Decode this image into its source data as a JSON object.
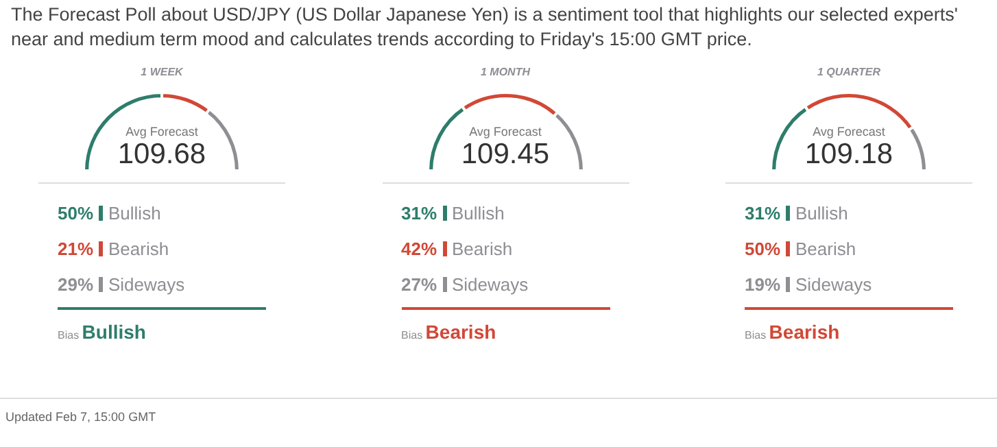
{
  "chart_data": [
    {
      "type": "donut",
      "title": "1 WEEK",
      "categories": [
        "Bullish",
        "Bearish",
        "Sideways"
      ],
      "values": [
        50,
        21,
        29
      ],
      "value_labels": [
        "50%",
        "21%",
        "29%"
      ],
      "colors": [
        "#2e7d6b",
        "#d14836",
        "#8e8e93"
      ],
      "legend": "bottom",
      "annotations": [
        "Avg Forecast",
        "109.68",
        "Bias",
        "Bullish",
        "The Forecast Poll about USD/JPY (US Dollar Japanese Yen) is a sentiment tool that highlights our selected experts' near and medium term mood and calculates trends according to Friday's 15:00 GMT price.",
        "Updated Feb 7, 15:00 GMT"
      ]
    },
    {
      "type": "donut",
      "title": "1 MONTH",
      "categories": [
        "Bullish",
        "Bearish",
        "Sideways"
      ],
      "values": [
        31,
        42,
        27
      ],
      "value_labels": [
        "31%",
        "42%",
        "27%"
      ],
      "colors": [
        "#2e7d6b",
        "#d14836",
        "#8e8e93"
      ],
      "legend": "bottom",
      "annotations": [
        "Avg Forecast",
        "109.45",
        "Bias",
        "Bearish"
      ]
    },
    {
      "type": "donut",
      "title": "1 QUARTER",
      "categories": [
        "Bullish",
        "Bearish",
        "Sideways"
      ],
      "values": [
        31,
        50,
        19
      ],
      "value_labels": [
        "31%",
        "50%",
        "19%"
      ],
      "colors": [
        "#2e7d6b",
        "#d14836",
        "#8e8e93"
      ],
      "legend": "bottom",
      "annotations": [
        "Avg Forecast",
        "109.18",
        "Bias",
        "Bearish"
      ]
    }
  ]
}
